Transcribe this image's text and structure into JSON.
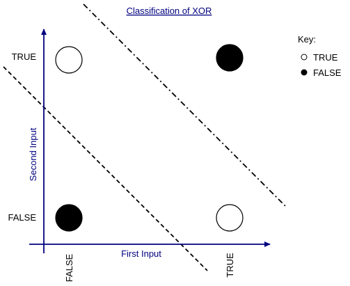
{
  "title": "Classification of XOR",
  "axes": {
    "x_label": "First Input",
    "y_label": "Second Input",
    "x_ticks": [
      "FALSE",
      "TRUE"
    ],
    "y_ticks": [
      "FALSE",
      "TRUE"
    ],
    "axis_color": "#000080",
    "label_color": "#000080"
  },
  "points": [
    {
      "x": "FALSE",
      "y": "TRUE",
      "output": "TRUE",
      "fill": "#ffffff"
    },
    {
      "x": "TRUE",
      "y": "TRUE",
      "output": "FALSE",
      "fill": "#000000"
    },
    {
      "x": "FALSE",
      "y": "FALSE",
      "output": "FALSE",
      "fill": "#000000"
    },
    {
      "x": "TRUE",
      "y": "FALSE",
      "output": "TRUE",
      "fill": "#ffffff"
    }
  ],
  "key": {
    "title": "Key:",
    "items": [
      {
        "label": "TRUE",
        "fill": "#ffffff"
      },
      {
        "label": "FALSE",
        "fill": "#000000"
      }
    ]
  },
  "decision_boundaries": [
    {
      "style": "dashed"
    },
    {
      "style": "dash-dot"
    }
  ]
}
